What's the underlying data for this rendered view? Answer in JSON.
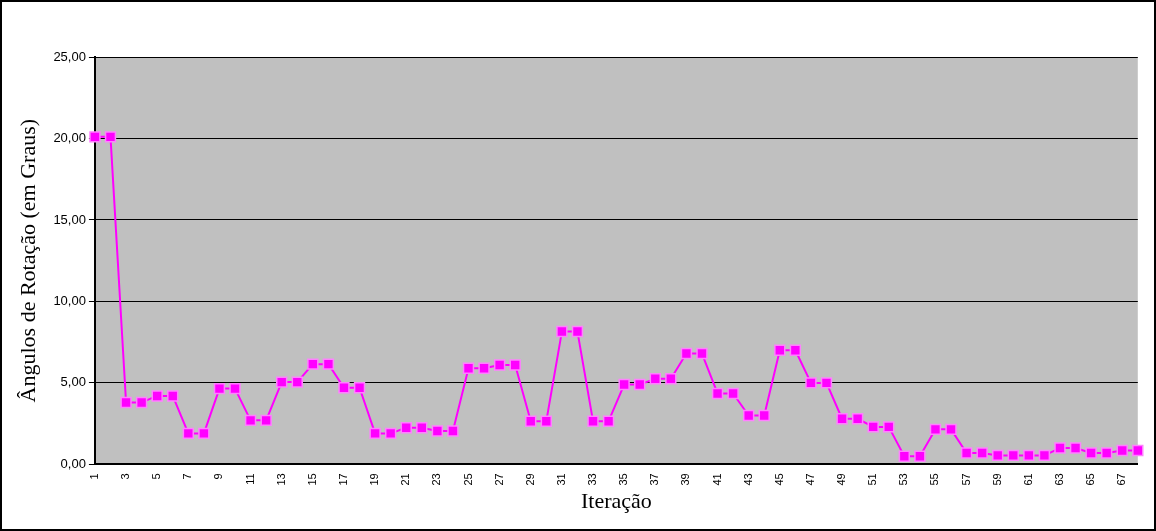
{
  "chart_data": {
    "type": "line",
    "xlabel": "Iteração",
    "ylabel": "Ângulos de Rotação (em Graus)",
    "categories": [
      "1",
      null,
      "3",
      null,
      "5",
      null,
      "7",
      null,
      "9",
      null,
      "11",
      null,
      "13",
      null,
      "15",
      null,
      "17",
      null,
      "19",
      null,
      "21",
      null,
      "23",
      null,
      "25",
      null,
      "27",
      null,
      "29",
      null,
      "31",
      null,
      "33",
      null,
      "35",
      null,
      "37",
      null,
      "39",
      null,
      "41",
      null,
      "43",
      null,
      "45",
      null,
      "47",
      null,
      "49",
      null,
      "51",
      null,
      "53",
      null,
      "55",
      null,
      "57",
      null,
      "59",
      null,
      "61",
      null,
      "63",
      null,
      "65",
      null,
      "67",
      null
    ],
    "series": [
      {
        "color": "#ff00ff",
        "values": [
          20.1,
          20.1,
          3.8,
          3.8,
          4.2,
          4.2,
          1.9,
          1.9,
          4.65,
          4.65,
          2.7,
          2.7,
          5.05,
          5.05,
          6.15,
          6.15,
          4.7,
          4.7,
          1.9,
          1.9,
          2.25,
          2.25,
          2.05,
          2.05,
          5.9,
          5.9,
          6.1,
          6.1,
          2.65,
          2.65,
          8.15,
          8.15,
          2.65,
          2.65,
          4.9,
          4.9,
          5.25,
          5.25,
          6.8,
          6.8,
          4.35,
          4.35,
          3.0,
          3.0,
          7.0,
          7.0,
          5.0,
          5.0,
          2.8,
          2.8,
          2.3,
          2.3,
          0.5,
          0.5,
          2.15,
          2.15,
          0.7,
          0.7,
          0.55,
          0.55,
          0.55,
          0.55,
          1.0,
          1.0,
          0.7,
          0.7,
          0.85,
          0.85
        ]
      }
    ],
    "ylim": [
      0,
      25
    ],
    "yticks": [
      {
        "value": 0,
        "label": "0,00"
      },
      {
        "value": 5,
        "label": "5,00"
      },
      {
        "value": 10,
        "label": "10,00"
      },
      {
        "value": 15,
        "label": "15,00"
      },
      {
        "value": 20,
        "label": "20,00"
      },
      {
        "value": 25,
        "label": "25,00"
      }
    ],
    "grid": "y",
    "legend": false,
    "marker": "square",
    "line_style": "solid"
  }
}
